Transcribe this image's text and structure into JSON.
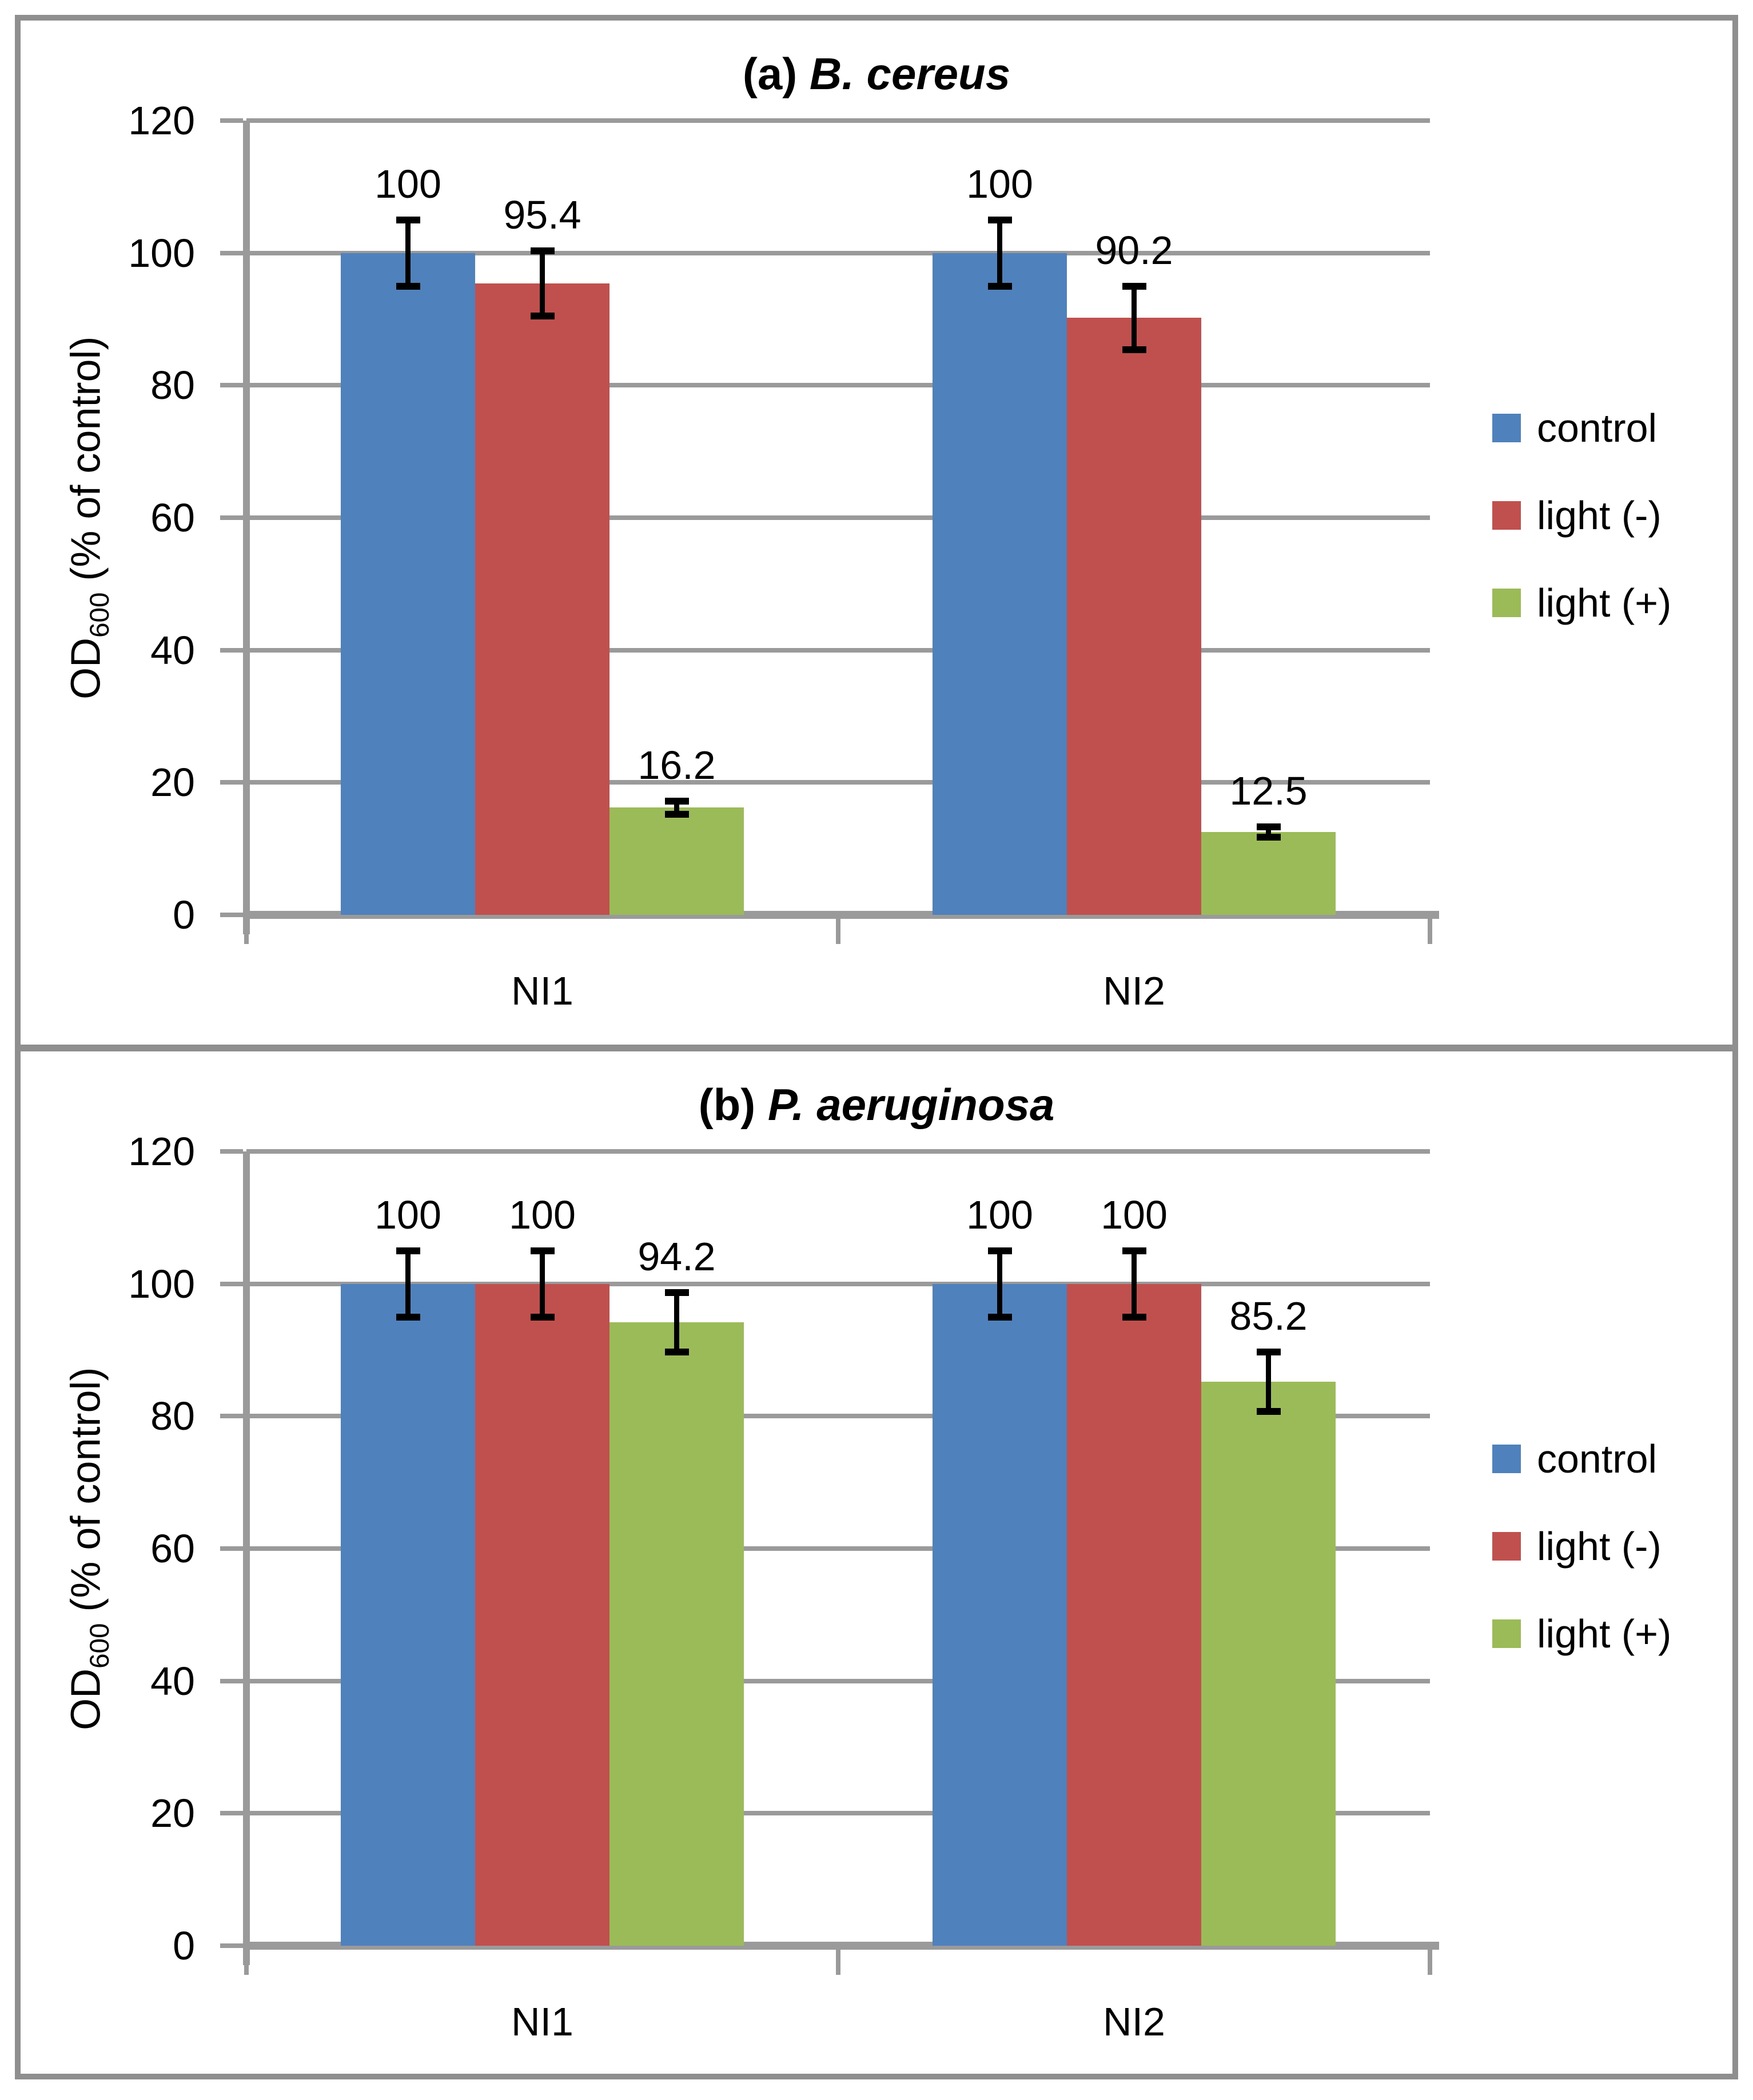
{
  "figure": {
    "background": "#ffffff",
    "border_color": "#8f8f8f",
    "grid_color": "#9a9a9a",
    "text_color": "#000000"
  },
  "axis": {
    "y_label_main": "OD",
    "y_label_sub": "600",
    "y_label_rest": " (% of control)",
    "y_ticks": [
      0,
      20,
      40,
      60,
      80,
      100,
      120
    ],
    "y_max": 120
  },
  "legend": {
    "items": [
      {
        "label": "control",
        "color": "#4f81bd"
      },
      {
        "label": "light (-)",
        "color": "#c0504d"
      },
      {
        "label": "light (+)",
        "color": "#9bbb59"
      }
    ]
  },
  "chart_data": [
    {
      "type": "bar",
      "title_prefix": "(a) ",
      "title_species": "B. cereus",
      "categories": [
        "NI1",
        "NI2"
      ],
      "series": [
        {
          "name": "control",
          "color": "#4f81bd",
          "values": [
            100,
            100
          ],
          "errors": [
            5,
            5
          ]
        },
        {
          "name": "light (-)",
          "color": "#c0504d",
          "values": [
            95.4,
            90.2
          ],
          "errors": [
            4.9,
            4.8
          ]
        },
        {
          "name": "light (+)",
          "color": "#9bbb59",
          "values": [
            16.2,
            12.5
          ],
          "errors": [
            1,
            0.8
          ]
        }
      ],
      "data_labels": [
        [
          "100",
          "95.4",
          "16.2"
        ],
        [
          "100",
          "90.2",
          "12.5"
        ]
      ],
      "ylabel": "OD600 (% of control)",
      "ylim": [
        0,
        120
      ],
      "grid": true,
      "legend_position": "right"
    },
    {
      "type": "bar",
      "title_prefix": "(b) ",
      "title_species": "P. aeruginosa",
      "categories": [
        "NI1",
        "NI2"
      ],
      "series": [
        {
          "name": "control",
          "color": "#4f81bd",
          "values": [
            100,
            100
          ],
          "errors": [
            5,
            5
          ]
        },
        {
          "name": "light (-)",
          "color": "#c0504d",
          "values": [
            100,
            100
          ],
          "errors": [
            5,
            5
          ]
        },
        {
          "name": "light (+)",
          "color": "#9bbb59",
          "values": [
            94.2,
            85.2
          ],
          "errors": [
            4.5,
            4.5
          ]
        }
      ],
      "data_labels": [
        [
          "100",
          "100",
          "94.2"
        ],
        [
          "100",
          "100",
          "85.2"
        ]
      ],
      "ylabel": "OD600 (% of control)",
      "ylim": [
        0,
        120
      ],
      "grid": true,
      "legend_position": "right"
    }
  ]
}
